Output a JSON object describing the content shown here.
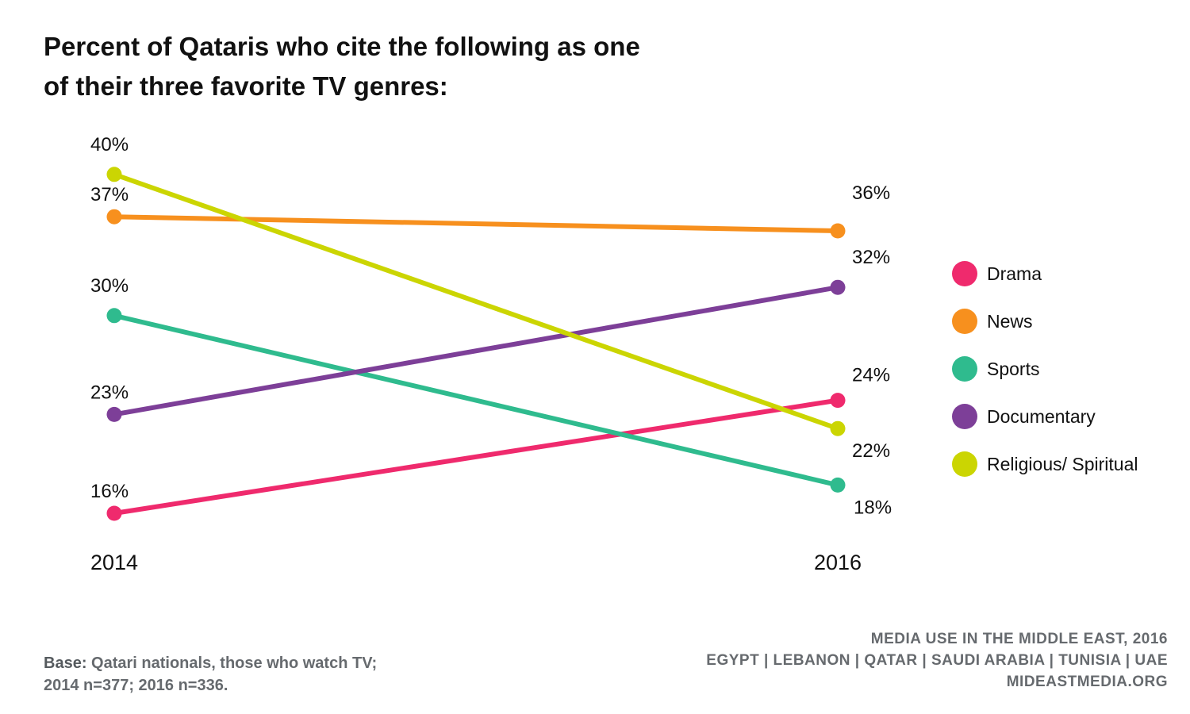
{
  "title_lines": [
    "Percent of Qataris who cite the following as one",
    "of their three favorite TV genres:"
  ],
  "chart_data": {
    "type": "line",
    "title": "Percent of Qataris who cite the following as one of their three favorite TV genres:",
    "x": [
      "2014",
      "2016"
    ],
    "ylim": [
      10,
      45
    ],
    "series": [
      {
        "name": "Drama",
        "color": "#ef2a6d",
        "values": [
          16,
          24
        ],
        "labels": [
          "16%",
          "24%"
        ]
      },
      {
        "name": "News",
        "color": "#f7901e",
        "values": [
          37,
          36
        ],
        "labels": [
          "37%",
          "36%"
        ]
      },
      {
        "name": "Sports",
        "color": "#2fbb8e",
        "values": [
          30,
          18
        ],
        "labels": [
          "30%",
          "18%"
        ]
      },
      {
        "name": "Documentary",
        "color": "#7d3f98",
        "values": [
          23,
          32
        ],
        "labels": [
          "23%",
          "32%"
        ]
      },
      {
        "name": "Religious/ Spiritual",
        "color": "#cbd502",
        "values": [
          40,
          22
        ],
        "labels": [
          "40%",
          "22%"
        ]
      }
    ],
    "legend_position": "right",
    "grid": false
  },
  "footer": {
    "base_label": "Base:",
    "base_text": " Qatari nationals, those who watch TV;",
    "base_line2": "2014 n=377; 2016 n=336.",
    "source_lines": [
      "MEDIA USE IN THE MIDDLE EAST, 2016",
      "EGYPT | LEBANON | QATAR | SAUDI ARABIA | TUNISIA | UAE",
      "MIDEASTMEDIA.ORG"
    ]
  }
}
